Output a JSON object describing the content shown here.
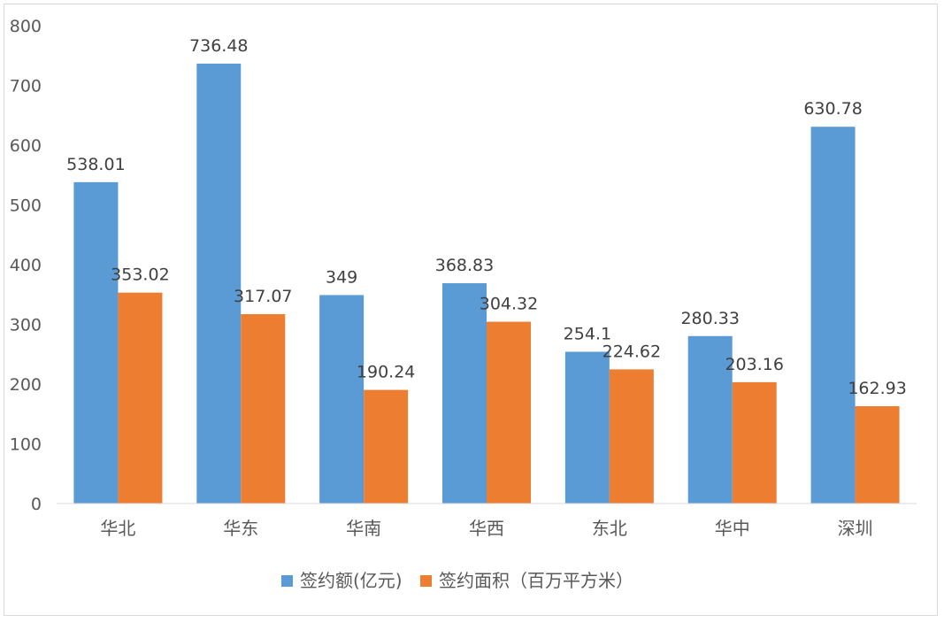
{
  "chart_data": {
    "type": "bar",
    "categories": [
      "华北",
      "华东",
      "华南",
      "华西",
      "东北",
      "华中",
      "深圳"
    ],
    "series": [
      {
        "name": "签约额(亿元)",
        "color": "#5B9BD5",
        "values": [
          538.01,
          736.48,
          349,
          368.83,
          254.1,
          280.33,
          630.78
        ],
        "labels": [
          "538.01",
          "736.48",
          "349",
          "368.83",
          "254.1",
          "280.33",
          "630.78"
        ]
      },
      {
        "name": "签约面积（百万平方米）",
        "color": "#ED7D31",
        "values": [
          353.02,
          317.07,
          190.24,
          304.32,
          224.62,
          203.16,
          162.93
        ],
        "labels": [
          "353.02",
          "317.07",
          "190.24",
          "304.32",
          "224.62",
          "203.16",
          "162.93"
        ]
      }
    ],
    "ylim": [
      0,
      800
    ],
    "yticks": [
      0,
      100,
      200,
      300,
      400,
      500,
      600,
      700,
      800
    ],
    "grid": false,
    "legend": "bottom"
  }
}
